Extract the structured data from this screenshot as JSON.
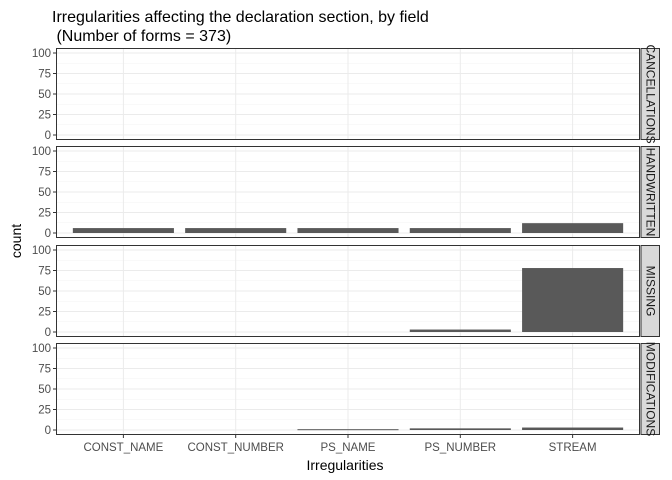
{
  "chart_data": {
    "type": "bar",
    "title_line1": "Irregularities affecting the declaration section, by field",
    "title_line2": " (Number of forms = 373)",
    "xlabel": "Irregularities",
    "ylabel": "count",
    "ylim": [
      0,
      100
    ],
    "y_ticks": [
      0,
      25,
      50,
      75,
      100
    ],
    "grid": true,
    "categories": [
      "CONST_NAME",
      "CONST_NUMBER",
      "PS_NAME",
      "PS_NUMBER",
      "STREAM"
    ],
    "facets": [
      {
        "name": "CANCELLATIONS",
        "values": [
          0,
          0,
          0,
          0,
          0
        ]
      },
      {
        "name": "HANDWRITTEN",
        "values": [
          6,
          6,
          6,
          6,
          12
        ]
      },
      {
        "name": "MISSING",
        "values": [
          0,
          0,
          0,
          3,
          78
        ]
      },
      {
        "name": "MODIFICATIONS",
        "values": [
          0,
          0,
          1,
          2,
          3
        ]
      }
    ],
    "bar_color": "#595959",
    "panel_border_color": "#333333",
    "strip_fill": "#d9d9d9",
    "grid_color": "#ebebeb"
  }
}
